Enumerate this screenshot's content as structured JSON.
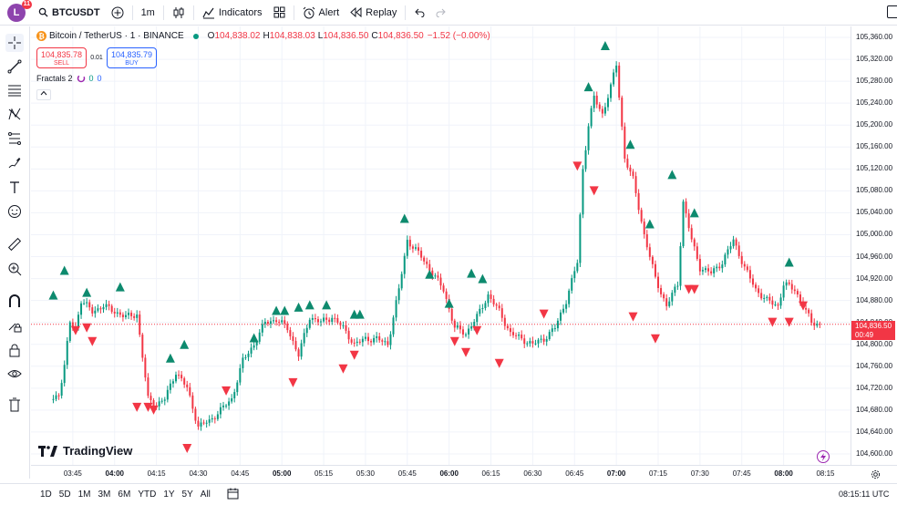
{
  "topbar": {
    "avatar_letter": "L",
    "avatar_badge": "11",
    "symbol": "BTCUSDT",
    "interval": "1m",
    "indicators_label": "Indicators",
    "alert_label": "Alert",
    "replay_label": "Replay"
  },
  "legend": {
    "title": "Bitcoin / TetherUS · 1 · BINANCE",
    "o_label": "O",
    "o_value": "104,838.02",
    "h_label": "H",
    "h_value": "104,838.03",
    "l_label": "L",
    "l_value": "104,836.50",
    "c_label": "C",
    "c_value": "104,836.50",
    "change": "−1.52 (−0.00%)"
  },
  "trade": {
    "sell_price": "104,835.78",
    "sell_label": "SELL",
    "spread": "0.01",
    "buy_price": "104,835.79",
    "buy_label": "BUY"
  },
  "indicator": {
    "name": "Fractals 2",
    "v1": "0",
    "v2": "0"
  },
  "branding": {
    "logo_text": "TradingView"
  },
  "current_price": {
    "price": "104,836.50",
    "countdown": "00:49"
  },
  "bottombar": {
    "ranges": [
      "1D",
      "5D",
      "1M",
      "3M",
      "6M",
      "YTD",
      "1Y",
      "5Y",
      "All"
    ],
    "clock": "08:15:11 UTC"
  },
  "colors": {
    "up": "#089981",
    "down": "#f23645",
    "accent": "#2962ff"
  },
  "icons": [
    "crosshair-icon",
    "trendline-icon",
    "fib-icon",
    "pattern-icon",
    "projection-icon",
    "brush-icon",
    "text-icon",
    "emoji-icon",
    "ruler-icon",
    "zoom-icon",
    "magnet-icon",
    "lock-draw-icon",
    "lock-icon",
    "eye-icon",
    "trash-icon"
  ],
  "chart_data": {
    "type": "candlestick",
    "y_axis_ticks": [
      "105,360.00",
      "105,320.00",
      "105,280.00",
      "105,240.00",
      "105,200.00",
      "105,160.00",
      "105,120.00",
      "105,080.00",
      "105,040.00",
      "105,000.00",
      "104,960.00",
      "104,920.00",
      "104,880.00",
      "104,840.00",
      "104,800.00",
      "104,760.00",
      "104,720.00",
      "104,680.00",
      "104,640.00",
      "104,600.00"
    ],
    "ylim": [
      104580,
      105380
    ],
    "x_axis_ticks": [
      {
        "label": "03:45",
        "bold": false
      },
      {
        "label": "04:00",
        "bold": true
      },
      {
        "label": "04:15",
        "bold": false
      },
      {
        "label": "04:30",
        "bold": false
      },
      {
        "label": "04:45",
        "bold": false
      },
      {
        "label": "05:00",
        "bold": true
      },
      {
        "label": "05:15",
        "bold": false
      },
      {
        "label": "05:30",
        "bold": false
      },
      {
        "label": "05:45",
        "bold": false
      },
      {
        "label": "06:00",
        "bold": true
      },
      {
        "label": "06:15",
        "bold": false
      },
      {
        "label": "06:30",
        "bold": false
      },
      {
        "label": "06:45",
        "bold": false
      },
      {
        "label": "07:00",
        "bold": true
      },
      {
        "label": "07:15",
        "bold": false
      },
      {
        "label": "07:30",
        "bold": false
      },
      {
        "label": "07:45",
        "bold": false
      },
      {
        "label": "08:00",
        "bold": true
      },
      {
        "label": "08:15",
        "bold": false
      }
    ],
    "path_close": [
      [
        "03:38",
        104700
      ],
      [
        "03:40",
        104710
      ],
      [
        "03:42",
        104760
      ],
      [
        "03:44",
        104840
      ],
      [
        "03:46",
        104830
      ],
      [
        "03:48",
        104880
      ],
      [
        "03:52",
        104860
      ],
      [
        "03:56",
        104870
      ],
      [
        "04:00",
        104860
      ],
      [
        "04:04",
        104850
      ],
      [
        "04:08",
        104855
      ],
      [
        "04:12",
        104700
      ],
      [
        "04:15",
        104690
      ],
      [
        "04:18",
        104700
      ],
      [
        "04:22",
        104750
      ],
      [
        "04:26",
        104720
      ],
      [
        "04:30",
        104650
      ],
      [
        "04:34",
        104660
      ],
      [
        "04:38",
        104680
      ],
      [
        "04:42",
        104700
      ],
      [
        "04:46",
        104770
      ],
      [
        "04:50",
        104800
      ],
      [
        "04:54",
        104840
      ],
      [
        "04:58",
        104845
      ],
      [
        "05:02",
        104830
      ],
      [
        "05:06",
        104780
      ],
      [
        "05:10",
        104850
      ],
      [
        "05:14",
        104840
      ],
      [
        "05:18",
        104850
      ],
      [
        "05:22",
        104830
      ],
      [
        "05:26",
        104800
      ],
      [
        "05:30",
        104810
      ],
      [
        "05:34",
        104810
      ],
      [
        "05:38",
        104800
      ],
      [
        "05:42",
        104900
      ],
      [
        "05:45",
        104990
      ],
      [
        "05:50",
        104960
      ],
      [
        "05:54",
        104930
      ],
      [
        "05:58",
        104900
      ],
      [
        "06:02",
        104830
      ],
      [
        "06:06",
        104820
      ],
      [
        "06:10",
        104850
      ],
      [
        "06:14",
        104890
      ],
      [
        "06:18",
        104860
      ],
      [
        "06:22",
        104820
      ],
      [
        "06:26",
        104810
      ],
      [
        "06:30",
        104800
      ],
      [
        "06:34",
        104810
      ],
      [
        "06:38",
        104830
      ],
      [
        "06:42",
        104880
      ],
      [
        "06:46",
        104950
      ],
      [
        "06:48",
        105120
      ],
      [
        "06:50",
        105200
      ],
      [
        "06:52",
        105250
      ],
      [
        "06:55",
        105220
      ],
      [
        "06:58",
        105270
      ],
      [
        "07:00",
        105310
      ],
      [
        "07:03",
        105140
      ],
      [
        "07:06",
        105100
      ],
      [
        "07:10",
        105000
      ],
      [
        "07:14",
        104920
      ],
      [
        "07:18",
        104870
      ],
      [
        "07:22",
        104910
      ],
      [
        "07:24",
        105060
      ],
      [
        "07:27",
        104990
      ],
      [
        "07:30",
        104940
      ],
      [
        "07:34",
        104930
      ],
      [
        "07:38",
        104950
      ],
      [
        "07:42",
        104990
      ],
      [
        "07:46",
        104940
      ],
      [
        "07:50",
        104900
      ],
      [
        "07:54",
        104880
      ],
      [
        "07:58",
        104870
      ],
      [
        "08:00",
        104910
      ],
      [
        "08:04",
        104900
      ],
      [
        "08:08",
        104860
      ],
      [
        "08:10",
        104840
      ],
      [
        "08:13",
        104836.5
      ]
    ],
    "fractal_up": [
      [
        "03:38",
        104890
      ],
      [
        "03:42",
        104935
      ],
      [
        "03:50",
        104895
      ],
      [
        "04:02",
        104905
      ],
      [
        "04:20",
        104775
      ],
      [
        "04:25",
        104800
      ],
      [
        "04:50",
        104812
      ],
      [
        "04:58",
        104862
      ],
      [
        "05:01",
        104862
      ],
      [
        "05:06",
        104868
      ],
      [
        "05:10",
        104872
      ],
      [
        "05:16",
        104872
      ],
      [
        "05:26",
        104855
      ],
      [
        "05:28",
        104855
      ],
      [
        "05:44",
        105030
      ],
      [
        "05:53",
        104928
      ],
      [
        "06:00",
        104875
      ],
      [
        "06:08",
        104930
      ],
      [
        "06:12",
        104920
      ],
      [
        "06:50",
        105270
      ],
      [
        "06:56",
        105345
      ],
      [
        "07:05",
        105165
      ],
      [
        "07:12",
        105020
      ],
      [
        "07:20",
        105110
      ],
      [
        "07:28",
        105040
      ],
      [
        "08:02",
        104950
      ]
    ],
    "fractal_down": [
      [
        "03:46",
        104825
      ],
      [
        "03:50",
        104830
      ],
      [
        "03:52",
        104805
      ],
      [
        "04:08",
        104685
      ],
      [
        "04:12",
        104685
      ],
      [
        "04:14",
        104680
      ],
      [
        "04:26",
        104610
      ],
      [
        "04:40",
        104715
      ],
      [
        "05:04",
        104730
      ],
      [
        "05:22",
        104755
      ],
      [
        "05:26",
        104780
      ],
      [
        "06:02",
        104805
      ],
      [
        "06:06",
        104785
      ],
      [
        "06:10",
        104825
      ],
      [
        "06:18",
        104765
      ],
      [
        "06:34",
        104855
      ],
      [
        "06:46",
        105125
      ],
      [
        "06:52",
        105080
      ],
      [
        "07:06",
        104850
      ],
      [
        "07:14",
        104810
      ],
      [
        "07:26",
        104900
      ],
      [
        "07:28",
        104900
      ],
      [
        "07:56",
        104840
      ],
      [
        "08:02",
        104840
      ],
      [
        "08:07",
        104870
      ]
    ]
  }
}
